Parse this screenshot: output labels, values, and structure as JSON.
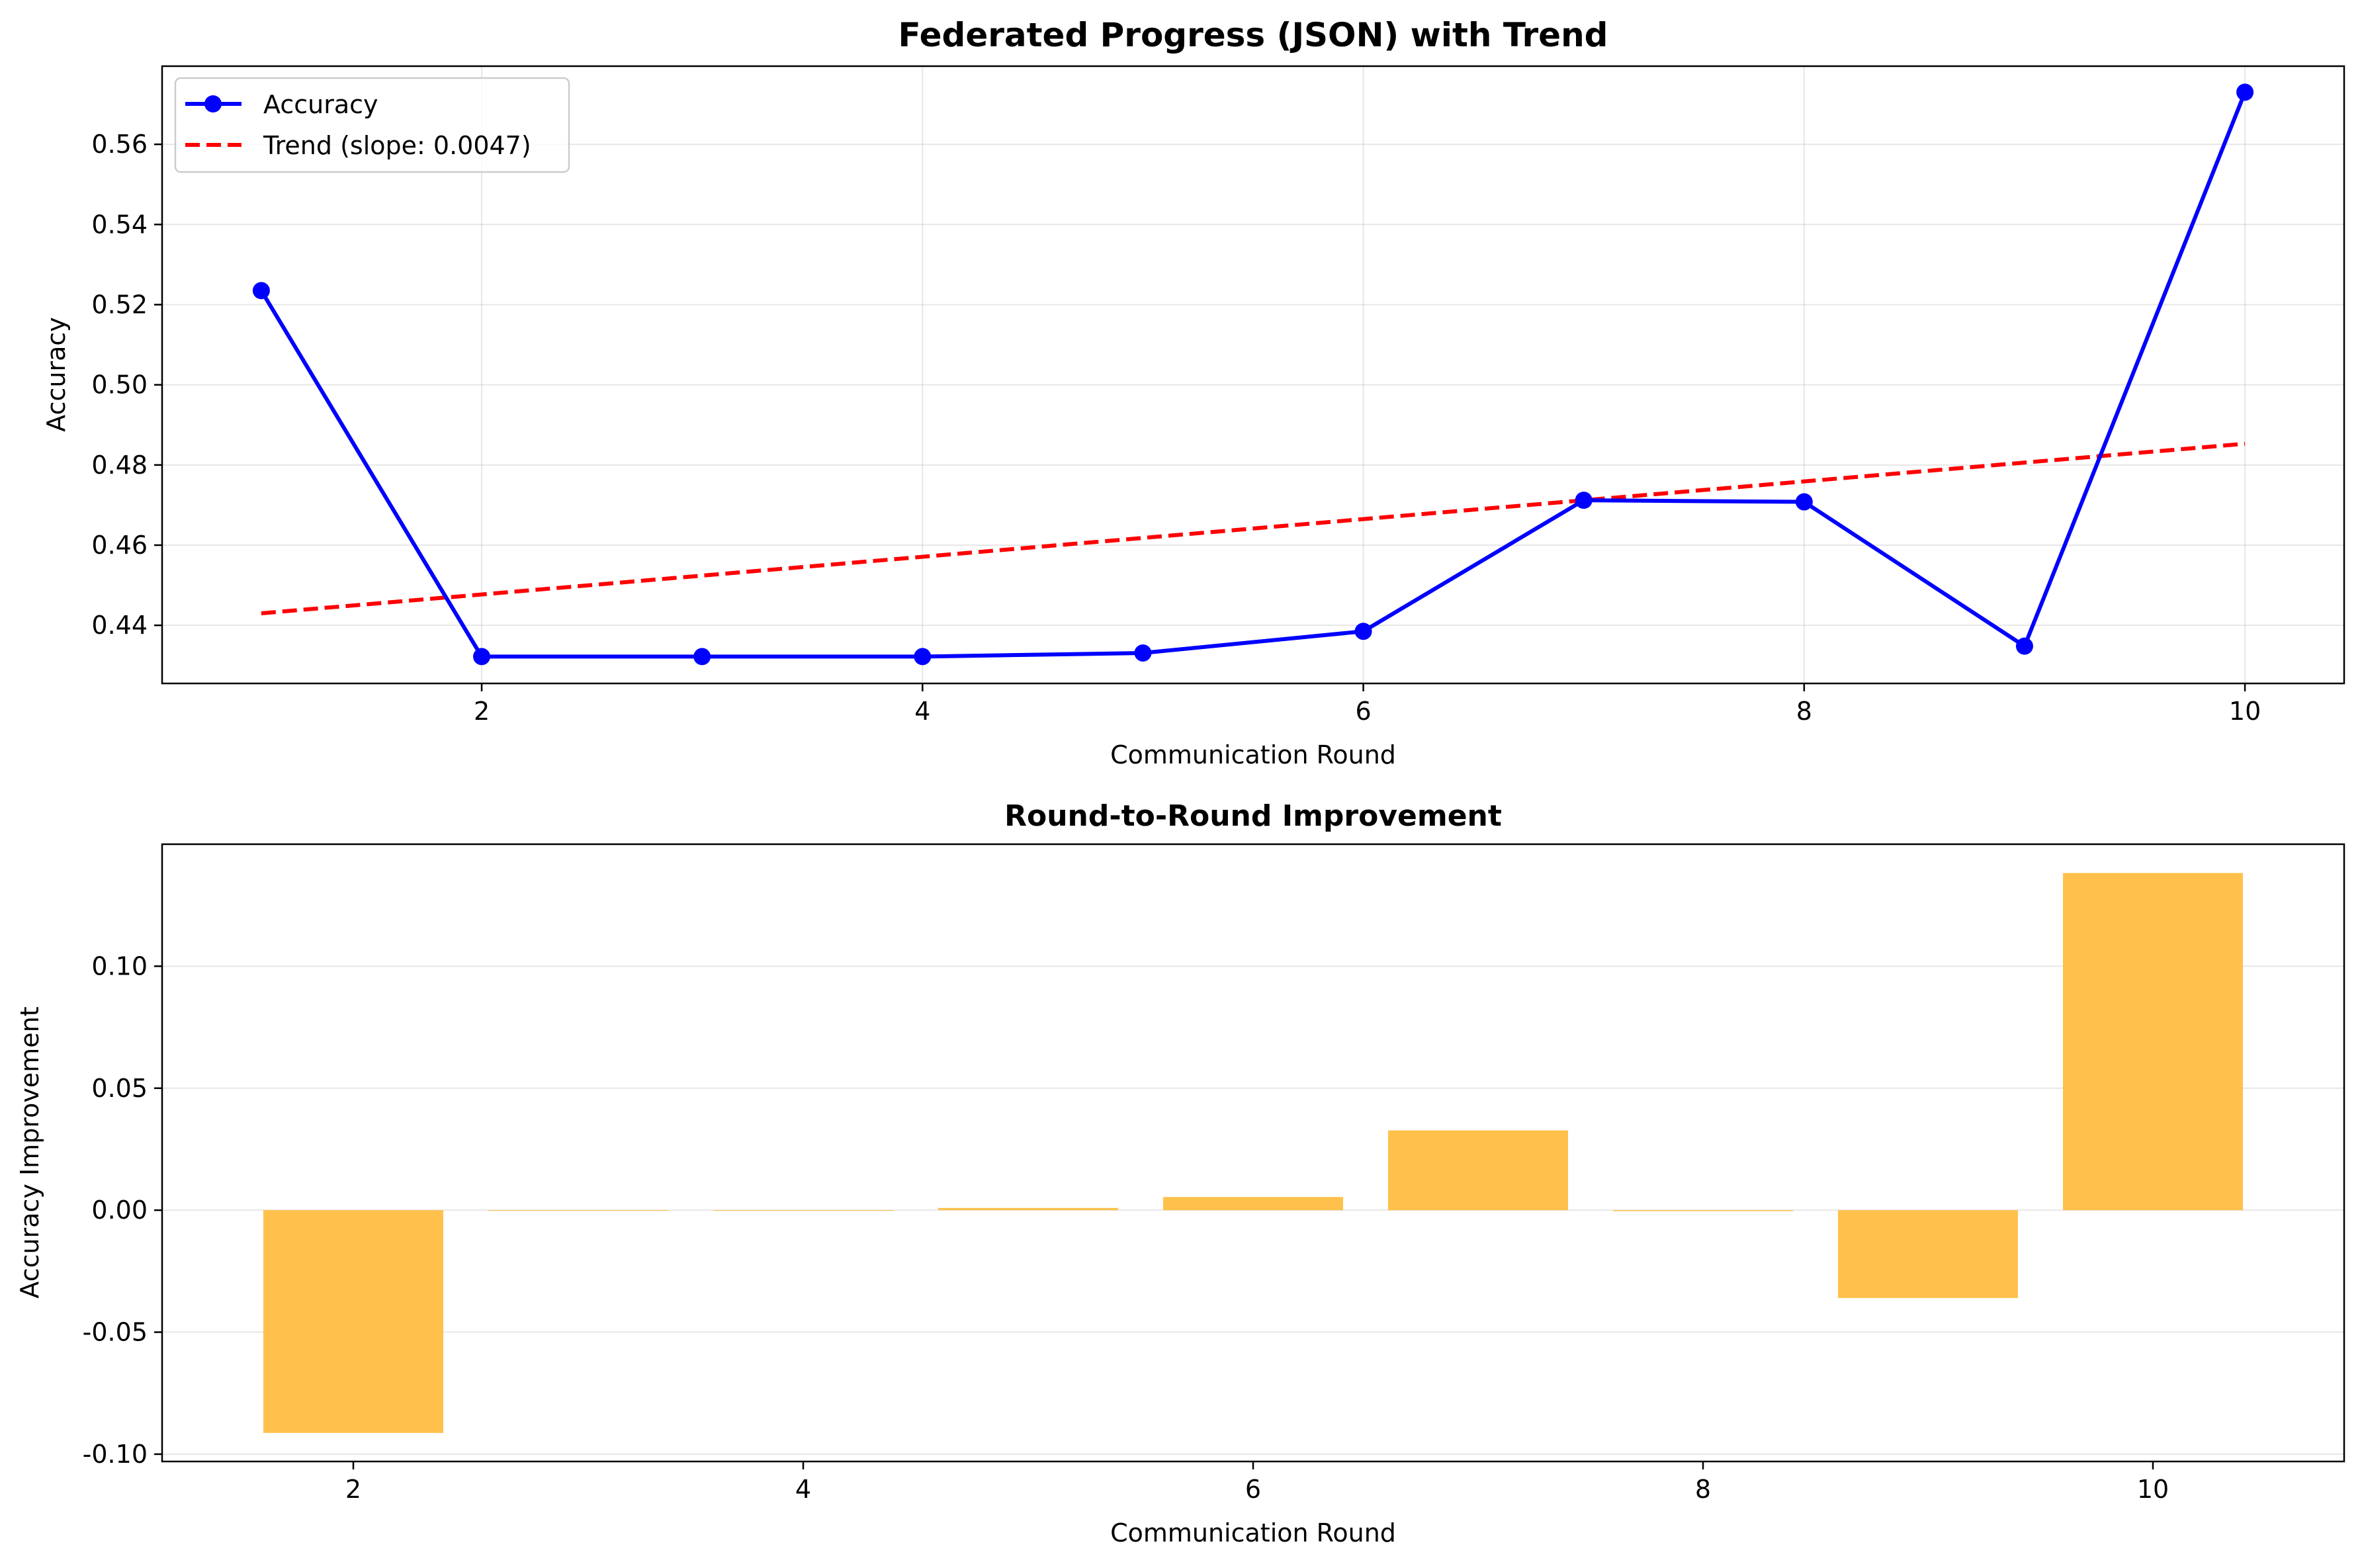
{
  "chart_data": [
    {
      "type": "line",
      "title": "Federated Progress (JSON) with Trend",
      "xlabel": "Communication Round",
      "ylabel": "Accuracy",
      "xlim": [
        0.55,
        10.45
      ],
      "ylim": [
        0.4255,
        0.5795
      ],
      "xticks": [
        2,
        4,
        6,
        8,
        10
      ],
      "yticks": [
        0.44,
        0.46,
        0.48,
        0.5,
        0.52,
        0.54,
        0.56
      ],
      "grid": true,
      "legend_position": "upper-left",
      "series": [
        {
          "name": "Accuracy",
          "style": "solid-with-markers",
          "color": "#0000ff",
          "x": [
            1,
            2,
            3,
            4,
            5,
            6,
            7,
            8,
            9,
            10
          ],
          "y": [
            0.5235,
            0.4322,
            0.4322,
            0.4322,
            0.4331,
            0.4385,
            0.4712,
            0.4708,
            0.4348,
            0.573
          ]
        },
        {
          "name": "Trend (slope: 0.0047)",
          "style": "dashed",
          "color": "#ff0000",
          "x": [
            1,
            10
          ],
          "y": [
            0.443,
            0.4853
          ]
        }
      ]
    },
    {
      "type": "bar",
      "title": "Round-to-Round Improvement",
      "xlabel": "Communication Round",
      "ylabel": "Accuracy Improvement",
      "xlim": [
        1.15,
        10.85
      ],
      "ylim": [
        -0.103,
        0.15
      ],
      "xticks": [
        2,
        4,
        6,
        8,
        10
      ],
      "yticks": [
        -0.1,
        -0.05,
        0.0,
        0.05,
        0.1
      ],
      "grid": true,
      "color": "#ffb833",
      "x": [
        2,
        3,
        4,
        5,
        6,
        7,
        8,
        9,
        10
      ],
      "values": [
        -0.0913,
        0.0,
        0.0,
        0.0009,
        0.0054,
        0.0327,
        -0.0004,
        -0.036,
        0.1382
      ]
    }
  ]
}
